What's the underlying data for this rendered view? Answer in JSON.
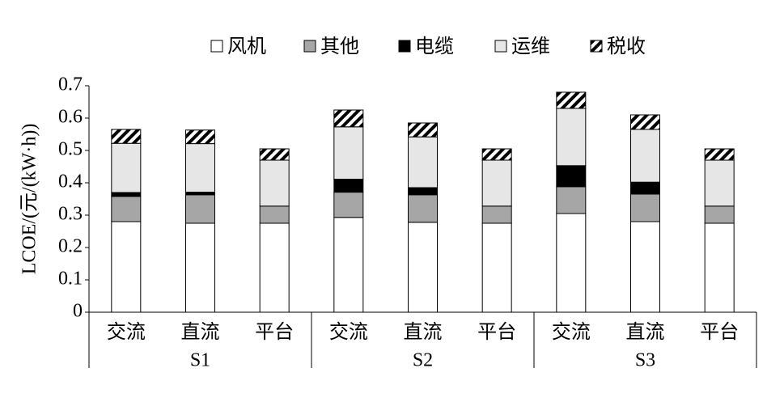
{
  "chart_data": {
    "type": "stacked_bar",
    "y_label": "LCOE/(元/(kW·h))",
    "categories": [
      "交流",
      "直流",
      "平台",
      "交流",
      "直流",
      "平台",
      "交流",
      "直流",
      "平台"
    ],
    "groups": [
      "S1",
      "S2",
      "S3"
    ],
    "series": [
      {
        "name": "风机",
        "color": "#ffffff",
        "values": [
          0.28,
          0.275,
          0.275,
          0.293,
          0.278,
          0.275,
          0.305,
          0.28,
          0.275
        ]
      },
      {
        "name": "其他",
        "color": "#a6a6a6",
        "values": [
          0.078,
          0.088,
          0.053,
          0.078,
          0.085,
          0.053,
          0.083,
          0.085,
          0.053
        ]
      },
      {
        "name": "电缆",
        "color": "#000000",
        "values": [
          0.012,
          0.008,
          0,
          0.04,
          0.022,
          0,
          0.065,
          0.037,
          0
        ]
      },
      {
        "name": "运维",
        "color": "#e6e6e6",
        "values": [
          0.152,
          0.15,
          0.142,
          0.162,
          0.157,
          0.142,
          0.177,
          0.163,
          0.142
        ]
      },
      {
        "name": "税收",
        "color": "#000000",
        "pattern": "hatch",
        "values": [
          0.043,
          0.042,
          0.035,
          0.052,
          0.043,
          0.035,
          0.05,
          0.045,
          0.035
        ]
      }
    ],
    "ylim": [
      0,
      0.7
    ],
    "yticks": [
      0,
      0.1,
      0.2,
      0.3,
      0.4,
      0.5,
      0.6,
      0.7
    ],
    "legend": "top"
  }
}
